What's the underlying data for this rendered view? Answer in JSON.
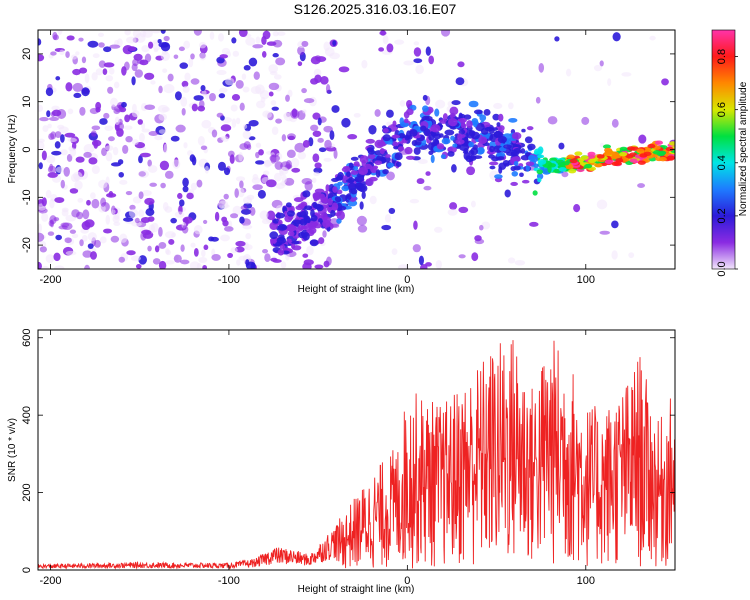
{
  "title": "S126.2025.316.03.16.E07",
  "chart_data": [
    {
      "type": "heatmap",
      "title": "S126.2025.316.03.16.E07",
      "xlabel": "Height of straight line (km)",
      "ylabel": "Frequency (Hz)",
      "xlim": [
        -207,
        150
      ],
      "ylim": [
        -25,
        25
      ],
      "xticks": [
        -200,
        -100,
        0,
        100
      ],
      "xtick_labels": [
        "-200",
        "-100",
        "0",
        "100"
      ],
      "yticks": [
        -20,
        -10,
        0,
        10,
        20
      ],
      "ytick_labels": [
        "-20",
        "-10",
        "0",
        "10",
        "20"
      ],
      "ridge": {
        "description": "frequency ridge of the signal (Hz) vs height (km)",
        "x": [
          -75,
          -50,
          -35,
          -20,
          -10,
          0,
          10,
          25,
          40,
          55,
          70,
          80,
          90,
          100,
          110,
          120,
          130,
          140,
          150
        ],
        "y": [
          -18,
          -14,
          -9,
          -3,
          1,
          3,
          4,
          3.5,
          2.5,
          0,
          -2.5,
          -3.5,
          -3,
          -2.5,
          -1.5,
          -1.5,
          -1,
          -0.5,
          -0.5
        ]
      },
      "colorbar": {
        "label": "Normalized spectral amplitude",
        "range": [
          0.0,
          0.9
        ],
        "ticks": [
          0.0,
          0.2,
          0.4,
          0.6,
          0.8
        ],
        "tick_labels": [
          "0.0",
          "0.2",
          "0.4",
          "0.6",
          "0.8"
        ],
        "colors": [
          "#f2e6fb",
          "#8a2be2",
          "#2c1bd9",
          "#1e7bff",
          "#00e5e5",
          "#00e040",
          "#d8e800",
          "#ff8800",
          "#ff1a1a",
          "#ff33aa"
        ]
      }
    },
    {
      "type": "line",
      "xlabel": "Height of straight line (km)",
      "ylabel": "SNR (10 * v/v)",
      "xlim": [
        -207,
        150
      ],
      "ylim": [
        0,
        620
      ],
      "xticks": [
        -200,
        -100,
        0,
        100
      ],
      "xtick_labels": [
        "-200",
        "-100",
        "0",
        "100"
      ],
      "yticks": [
        0,
        200,
        400,
        600
      ],
      "ytick_labels": [
        "0",
        "200",
        "400",
        "600"
      ],
      "color": "#ee2222",
      "envelope": {
        "description": "approximate upper envelope of the noisy SNR trace",
        "x": [
          -207,
          -150,
          -100,
          -85,
          -75,
          -65,
          -55,
          -40,
          -20,
          -5,
          0,
          20,
          40,
          50,
          60,
          70,
          80,
          90,
          100,
          110,
          125,
          130,
          140,
          150
        ],
        "y": [
          15,
          20,
          18,
          30,
          60,
          55,
          40,
          120,
          250,
          330,
          470,
          430,
          540,
          590,
          620,
          480,
          610,
          560,
          430,
          420,
          500,
          570,
          380,
          470
        ]
      }
    }
  ]
}
